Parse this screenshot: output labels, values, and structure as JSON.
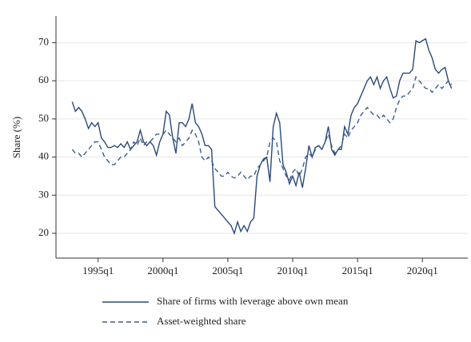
{
  "chart_data": {
    "type": "line",
    "y_label": "Share (%)",
    "x": [
      1993,
      1993.25,
      1993.5,
      1993.75,
      1994,
      1994.25,
      1994.5,
      1994.75,
      1995,
      1995.25,
      1995.5,
      1995.75,
      1996,
      1996.25,
      1996.5,
      1996.75,
      1997,
      1997.25,
      1997.5,
      1997.75,
      1998,
      1998.25,
      1998.5,
      1998.75,
      1999,
      1999.25,
      1999.5,
      1999.75,
      2000,
      2000.25,
      2000.5,
      2000.75,
      2001,
      2001.25,
      2001.5,
      2001.75,
      2002,
      2002.25,
      2002.5,
      2002.75,
      2003,
      2003.25,
      2003.5,
      2003.75,
      2004,
      2004.25,
      2004.5,
      2004.75,
      2005,
      2005.25,
      2005.5,
      2005.75,
      2006,
      2006.25,
      2006.5,
      2006.75,
      2007,
      2007.25,
      2007.5,
      2007.75,
      2008,
      2008.25,
      2008.5,
      2008.75,
      2009,
      2009.25,
      2009.5,
      2009.75,
      2010,
      2010.25,
      2010.5,
      2010.75,
      2011,
      2011.25,
      2011.5,
      2011.75,
      2012,
      2012.25,
      2012.5,
      2012.75,
      2013,
      2013.25,
      2013.5,
      2013.75,
      2014,
      2014.25,
      2014.5,
      2014.75,
      2015,
      2015.25,
      2015.5,
      2015.75,
      2016,
      2016.25,
      2016.5,
      2016.75,
      2017,
      2017.25,
      2017.5,
      2017.75,
      2018,
      2018.25,
      2018.5,
      2018.75,
      2019,
      2019.25,
      2019.5,
      2019.75,
      2020,
      2020.25,
      2020.5,
      2020.75,
      2021,
      2021.25,
      2021.5,
      2021.75,
      2022,
      2022.25
    ],
    "series": [
      {
        "name": "Share of firms with leverage above own mean",
        "color": "#2b4a78",
        "dash": false,
        "values": [
          54.5,
          52,
          53,
          52,
          50,
          47.5,
          49,
          48,
          49,
          45,
          44,
          42.5,
          42.5,
          43,
          42.5,
          43.5,
          42.5,
          44,
          42,
          43,
          44,
          47,
          44,
          43,
          44,
          43,
          40.5,
          44,
          46,
          52,
          51,
          45,
          41,
          49,
          49,
          48,
          50,
          54,
          49,
          48,
          46,
          43,
          43,
          42,
          27,
          26,
          25,
          24,
          23,
          22,
          20,
          23,
          20.5,
          22,
          20.5,
          23,
          24,
          35,
          38,
          39.5,
          40,
          33.5,
          48,
          51.5,
          49,
          38,
          36,
          33,
          35,
          32.5,
          36,
          32,
          37,
          43,
          40,
          42.5,
          43,
          42,
          44,
          48,
          42,
          40.5,
          42,
          42,
          48,
          46,
          51,
          53,
          54,
          56,
          58,
          60,
          61,
          59,
          61,
          58,
          60,
          61,
          58,
          55.5,
          56,
          60,
          62,
          62,
          62,
          63,
          70.5,
          70,
          70.5,
          71,
          68,
          66,
          63,
          62,
          63,
          63.5,
          60,
          58
        ]
      },
      {
        "name": "Asset-weighted share",
        "color": "#3d5f93",
        "dash": true,
        "values": [
          42,
          41,
          41,
          40,
          41,
          42,
          43,
          44,
          44,
          42,
          40,
          39,
          38,
          38,
          39,
          40,
          40,
          41,
          42,
          44,
          43,
          45,
          43,
          44,
          44,
          45,
          46,
          46,
          46,
          47,
          46,
          45,
          44,
          45,
          43,
          44,
          45,
          47,
          46,
          44,
          40,
          39,
          40,
          39,
          37,
          36,
          35,
          35,
          36,
          35,
          34.5,
          35,
          36,
          35,
          34,
          35,
          35,
          37,
          38,
          39,
          40,
          44,
          45,
          44,
          39,
          37,
          35,
          34,
          36,
          37,
          35,
          37,
          40,
          41,
          40,
          42,
          43,
          42,
          44,
          46,
          43,
          41,
          42,
          43,
          46,
          45,
          47,
          48,
          49,
          51,
          52,
          53,
          52,
          51,
          51,
          50,
          51,
          50,
          49,
          50,
          53,
          55,
          56,
          56,
          57,
          58,
          61,
          60,
          59,
          58,
          58,
          57,
          58,
          59,
          58,
          59,
          60,
          59
        ]
      }
    ],
    "xlim": [
      1991.75,
      2023.5
    ],
    "xticks": [
      {
        "value": 1995,
        "label": "1995q1"
      },
      {
        "value": 2000,
        "label": "2000q1"
      },
      {
        "value": 2005,
        "label": "2005q1"
      },
      {
        "value": 2010,
        "label": "2010q1"
      },
      {
        "value": 2015,
        "label": "2015q1"
      },
      {
        "value": 2020,
        "label": "2020q1"
      }
    ],
    "ylim": [
      13.5,
      77
    ],
    "yticks": [
      20,
      30,
      40,
      50,
      60,
      70
    ],
    "grid": true
  }
}
